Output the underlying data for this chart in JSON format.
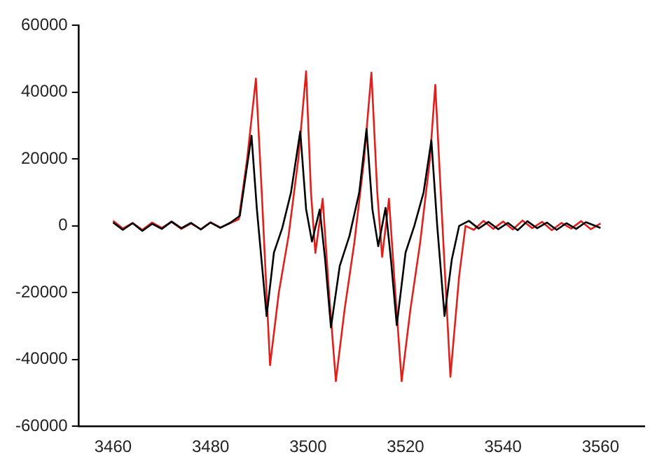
{
  "chart_data": {
    "type": "line",
    "xlim": [
      3453,
      3569
    ],
    "xticks": [
      3460,
      3480,
      3500,
      3520,
      3540,
      3560
    ],
    "ylim": [
      -60000,
      60000
    ],
    "yticks": [
      -60000,
      -40000,
      -20000,
      0,
      20000,
      40000,
      60000
    ],
    "grid": false,
    "legend": false,
    "marker": "none",
    "line_style": "solid",
    "series": [
      {
        "color": "#000000",
        "x": [
          3460,
          3462,
          3464,
          3466,
          3468,
          3470,
          3472,
          3474,
          3476,
          3478,
          3480,
          3482,
          3484,
          3486,
          3487.5,
          3488.4,
          3489.5,
          3491.5,
          3493,
          3494.7,
          3496.5,
          3498.4,
          3499.6,
          3500.8,
          3502.4,
          3503.5,
          3504.7,
          3506.5,
          3508.5,
          3510.5,
          3512,
          3513.2,
          3514.4,
          3515.9,
          3517,
          3518.2,
          3520,
          3521.8,
          3523.7,
          3525.3,
          3526.5,
          3528,
          3529.5,
          3531,
          3533,
          3535,
          3537,
          3539,
          3541,
          3543,
          3545,
          3547,
          3549,
          3551,
          3553,
          3555,
          3557,
          3560
        ],
        "values": [
          1000,
          -1200,
          800,
          -1500,
          600,
          -900,
          1300,
          -700,
          900,
          -1100,
          1000,
          -600,
          900,
          3000,
          18000,
          27000,
          5000,
          -27000,
          -8000,
          -700,
          10000,
          28300,
          5000,
          -4700,
          4900,
          -10000,
          -30400,
          -12000,
          -3000,
          10000,
          29000,
          5000,
          -6100,
          5400,
          -10000,
          -29700,
          -8000,
          0,
          10000,
          25600,
          0,
          -27000,
          -10000,
          0,
          1500,
          -800,
          1200,
          -1000,
          900,
          -1300,
          1400,
          -700,
          1000,
          -1200,
          800,
          -900,
          1100,
          -600
        ]
      },
      {
        "color": "#e0201b",
        "x": [
          3460,
          3462,
          3464,
          3466,
          3468,
          3470,
          3472,
          3474,
          3476,
          3478,
          3480,
          3482,
          3484,
          3485.8,
          3487.5,
          3489.3,
          3490.5,
          3492.2,
          3494,
          3496,
          3498,
          3499.6,
          3500.6,
          3501.5,
          3503,
          3504.3,
          3505.7,
          3507.5,
          3509.5,
          3511.5,
          3513,
          3514.2,
          3515.2,
          3516.6,
          3517.9,
          3519.2,
          3521,
          3523,
          3525,
          3526.1,
          3527.4,
          3529.2,
          3531,
          3532.3,
          3534,
          3536,
          3538,
          3540,
          3542,
          3544,
          3546,
          3548,
          3550,
          3552,
          3554,
          3556,
          3558,
          3560
        ],
        "values": [
          1500,
          -800,
          900,
          -1200,
          1000,
          -600,
          1200,
          -900,
          700,
          -1000,
          1100,
          -500,
          800,
          2000,
          20000,
          44100,
          10000,
          -41700,
          -20000,
          -3000,
          20000,
          46300,
          10000,
          -8100,
          8100,
          -20000,
          -46500,
          -25000,
          -5000,
          20000,
          45900,
          10000,
          -9300,
          8100,
          -20000,
          -46500,
          -25000,
          -5000,
          20000,
          42200,
          5000,
          -45200,
          -15000,
          0,
          -1200,
          1500,
          -900,
          1300,
          -1100,
          1600,
          -700,
          1200,
          -1300,
          900,
          -800,
          1400,
          -1000,
          700
        ]
      }
    ]
  }
}
